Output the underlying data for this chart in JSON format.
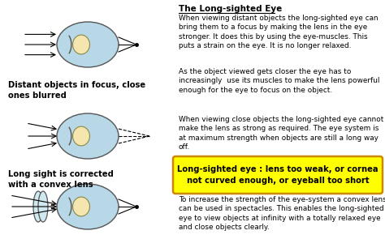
{
  "background_color": "#ffffff",
  "title_text": "The Long-sighted Eye",
  "para1": "When viewing distant objects the long-sighted eye can\nbring them to a focus by making the lens in the eye\nstronger. It does this by using the eye-muscles. This\nputs a strain on the eye. It is no longer relaxed.",
  "para2": "As the object viewed gets closer the eye has to\nincreasingly  use its muscles to make the lens powerful\nenough for the eye to focus on the object.",
  "para3": "When viewing close objects the long-sighted eye cannot\nmake the lens as strong as required. The eye system is\nat maximum strength when objects are still a long way\noff.",
  "highlight_text": "Long-sighted eye : lens too weak, or cornea\nnot curved enough, or eyeball too short",
  "highlight_bg": "#ffff00",
  "highlight_border": "#cc8800",
  "para4": "To increase the strength of the eye-system a convex lens\ncan be used in spectacles. This enables the long-sighted\neye to view objects at infinity with a totally relaxed eye\nand close objects clearly.",
  "label1": "Distant objects in focus, close\nones blurred",
  "label2": "Long sight is corrected\nwith a convex lens",
  "fig_width": 4.74,
  "fig_height": 2.95,
  "dpi": 100
}
